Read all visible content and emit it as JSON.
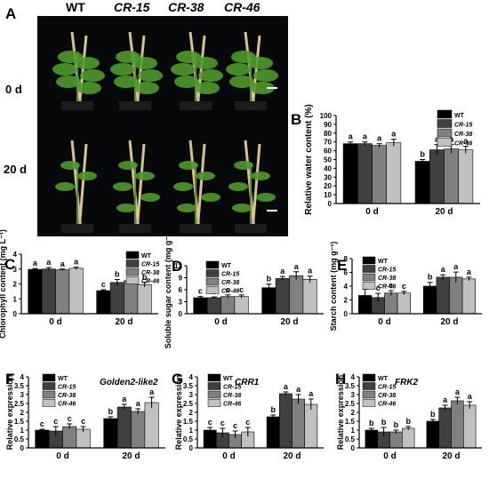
{
  "colors": {
    "WT": "#000000",
    "CR-15": "#404040",
    "CR-38": "#808080",
    "CR-46": "#c0c0c0",
    "photo_bg": "#07080a",
    "plant": "#4f9a2c",
    "stake": "#d8c28a"
  },
  "panel_a": {
    "letter": "A",
    "columns": [
      "WT",
      "CR-15",
      "CR-38",
      "CR-46"
    ],
    "rows": [
      "0 d",
      "20 d"
    ]
  },
  "chart_data": [
    {
      "type": "bar",
      "panel": "B",
      "ylabel": "Relative water content (%)",
      "ylim": [
        0,
        100
      ],
      "yticks": [
        0,
        10,
        20,
        30,
        40,
        50,
        60,
        70,
        80,
        90,
        100
      ],
      "categories": [
        "0 d",
        "20 d"
      ],
      "series": [
        {
          "name": "WT",
          "values": [
            68,
            48
          ],
          "errors": [
            2,
            2
          ],
          "letters": [
            "a",
            "b"
          ]
        },
        {
          "name": "CR-15",
          "values": [
            68,
            61
          ],
          "errors": [
            2,
            6
          ],
          "letters": [
            "a",
            "a"
          ]
        },
        {
          "name": "CR-38",
          "values": [
            66,
            62
          ],
          "errors": [
            2,
            5
          ],
          "letters": [
            "a",
            "a"
          ]
        },
        {
          "name": "CR-46",
          "values": [
            69,
            61
          ],
          "errors": [
            4,
            4
          ],
          "letters": [
            "a",
            "a"
          ]
        }
      ],
      "legend": "top-right"
    },
    {
      "type": "bar",
      "panel": "C",
      "ylabel": "Chlorophyll content (mg L⁻¹)",
      "ylim": [
        0,
        4
      ],
      "yticks": [
        0,
        1,
        2,
        3,
        4
      ],
      "categories": [
        "0 d",
        "20 d"
      ],
      "series": [
        {
          "name": "WT",
          "values": [
            2.98,
            1.55
          ],
          "errors": [
            0.06,
            0.06
          ],
          "letters": [
            "a",
            "c"
          ]
        },
        {
          "name": "CR-15",
          "values": [
            3.0,
            2.1
          ],
          "errors": [
            0.1,
            0.2
          ],
          "letters": [
            "a",
            "b"
          ]
        },
        {
          "name": "CR-38",
          "values": [
            2.95,
            2.22
          ],
          "errors": [
            0.05,
            0.22
          ],
          "letters": [
            "a",
            "b"
          ]
        },
        {
          "name": "CR-46",
          "values": [
            3.05,
            1.95
          ],
          "errors": [
            0.08,
            0.15
          ],
          "letters": [
            "a",
            "b"
          ]
        }
      ],
      "legend": "top-right"
    },
    {
      "type": "bar",
      "panel": "D",
      "ylabel": "Soluble sugar content (mg g⁻¹)",
      "ylim": [
        0,
        12
      ],
      "yticks": [
        0,
        3,
        6,
        9,
        12
      ],
      "categories": [
        "0 d",
        "20 d"
      ],
      "series": [
        {
          "name": "WT",
          "values": [
            4.0,
            6.5
          ],
          "errors": [
            0.3,
            0.9
          ],
          "letters": [
            "c",
            "b"
          ]
        },
        {
          "name": "CR-15",
          "values": [
            4.0,
            8.8
          ],
          "errors": [
            0.2,
            0.5
          ],
          "letters": [
            "c",
            "a"
          ]
        },
        {
          "name": "CR-38",
          "values": [
            4.3,
            9.5
          ],
          "errors": [
            0.4,
            1.0
          ],
          "letters": [
            "c",
            "a"
          ]
        },
        {
          "name": "CR-46",
          "values": [
            4.3,
            8.6
          ],
          "errors": [
            0.4,
            0.8
          ],
          "letters": [
            "c",
            "a"
          ]
        }
      ],
      "legend": "top-left"
    },
    {
      "type": "bar",
      "panel": "E",
      "ylabel": "Starch content (mg g⁻¹)",
      "ylim": [
        0,
        8
      ],
      "yticks": [
        0,
        2,
        4,
        6,
        8
      ],
      "categories": [
        "0 d",
        "20 d"
      ],
      "series": [
        {
          "name": "WT",
          "values": [
            2.65,
            4.0
          ],
          "errors": [
            0.9,
            0.55
          ],
          "letters": [
            "c",
            "b"
          ]
        },
        {
          "name": "CR-15",
          "values": [
            2.35,
            5.3
          ],
          "errors": [
            0.6,
            0.35
          ],
          "letters": [
            "c",
            "a"
          ]
        },
        {
          "name": "CR-38",
          "values": [
            3.0,
            5.3
          ],
          "errors": [
            0.35,
            0.75
          ],
          "letters": [
            "c",
            "a"
          ]
        },
        {
          "name": "CR-46",
          "values": [
            3.0,
            5.05
          ],
          "errors": [
            0.25,
            0.25
          ],
          "letters": [
            "c",
            "a"
          ]
        }
      ],
      "legend": "top-left"
    },
    {
      "type": "bar",
      "panel": "F",
      "title": "Golden2-like2",
      "ylabel": "Relative expression",
      "ylim": [
        0,
        4
      ],
      "yticks": [
        0,
        0.5,
        1,
        1.5,
        2,
        2.5,
        3,
        3.5,
        4
      ],
      "categories": [
        "0 d",
        "20 d"
      ],
      "series": [
        {
          "name": "WT",
          "values": [
            1.0,
            1.65
          ],
          "errors": [
            0.05,
            0.1
          ],
          "letters": [
            "c",
            "b"
          ]
        },
        {
          "name": "CR-15",
          "values": [
            0.95,
            2.3
          ],
          "errors": [
            0.25,
            0.15
          ],
          "letters": [
            "c",
            "a"
          ]
        },
        {
          "name": "CR-38",
          "values": [
            1.2,
            2.05
          ],
          "errors": [
            0.15,
            0.15
          ],
          "letters": [
            "c",
            "a"
          ]
        },
        {
          "name": "CR-46",
          "values": [
            1.05,
            2.55
          ],
          "errors": [
            0.15,
            0.3
          ],
          "letters": [
            "c",
            "a"
          ]
        }
      ],
      "legend": "top-left"
    },
    {
      "type": "bar",
      "panel": "G",
      "title": "CRR1",
      "ylabel": "Relative expression",
      "ylim": [
        0,
        4
      ],
      "yticks": [
        0,
        0.5,
        1,
        1.5,
        2,
        2.5,
        3,
        3.5,
        4
      ],
      "categories": [
        "0 d",
        "20 d"
      ],
      "series": [
        {
          "name": "WT",
          "values": [
            1.0,
            1.75
          ],
          "errors": [
            0.15,
            0.1
          ],
          "letters": [
            "c",
            "b"
          ]
        },
        {
          "name": "CR-15",
          "values": [
            0.85,
            3.05
          ],
          "errors": [
            0.25,
            0.1
          ],
          "letters": [
            "c",
            "a"
          ]
        },
        {
          "name": "CR-38",
          "values": [
            0.75,
            2.75
          ],
          "errors": [
            0.2,
            0.25
          ],
          "letters": [
            "c",
            "a"
          ]
        },
        {
          "name": "CR-46",
          "values": [
            0.9,
            2.45
          ],
          "errors": [
            0.25,
            0.3
          ],
          "letters": [
            "c",
            "a"
          ]
        }
      ],
      "legend": "top-left"
    },
    {
      "type": "bar",
      "panel": "H",
      "title": "FRK2",
      "ylabel": "Relative expression",
      "ylim": [
        0,
        4
      ],
      "yticks": [
        0,
        0.5,
        1,
        1.5,
        2,
        2.5,
        3,
        3.5,
        4
      ],
      "categories": [
        "0 d",
        "20 d"
      ],
      "series": [
        {
          "name": "WT",
          "values": [
            1.0,
            1.5
          ],
          "errors": [
            0.1,
            0.1
          ],
          "letters": [
            "b",
            "b"
          ]
        },
        {
          "name": "CR-15",
          "values": [
            0.9,
            2.25
          ],
          "errors": [
            0.25,
            0.15
          ],
          "letters": [
            "b",
            "a"
          ]
        },
        {
          "name": "CR-38",
          "values": [
            0.9,
            2.65
          ],
          "errors": [
            0.1,
            0.2
          ],
          "letters": [
            "b",
            "a"
          ]
        },
        {
          "name": "CR-46",
          "values": [
            1.1,
            2.4
          ],
          "errors": [
            0.1,
            0.2
          ],
          "letters": [
            "b",
            "a"
          ]
        }
      ],
      "legend": "top-left"
    }
  ]
}
